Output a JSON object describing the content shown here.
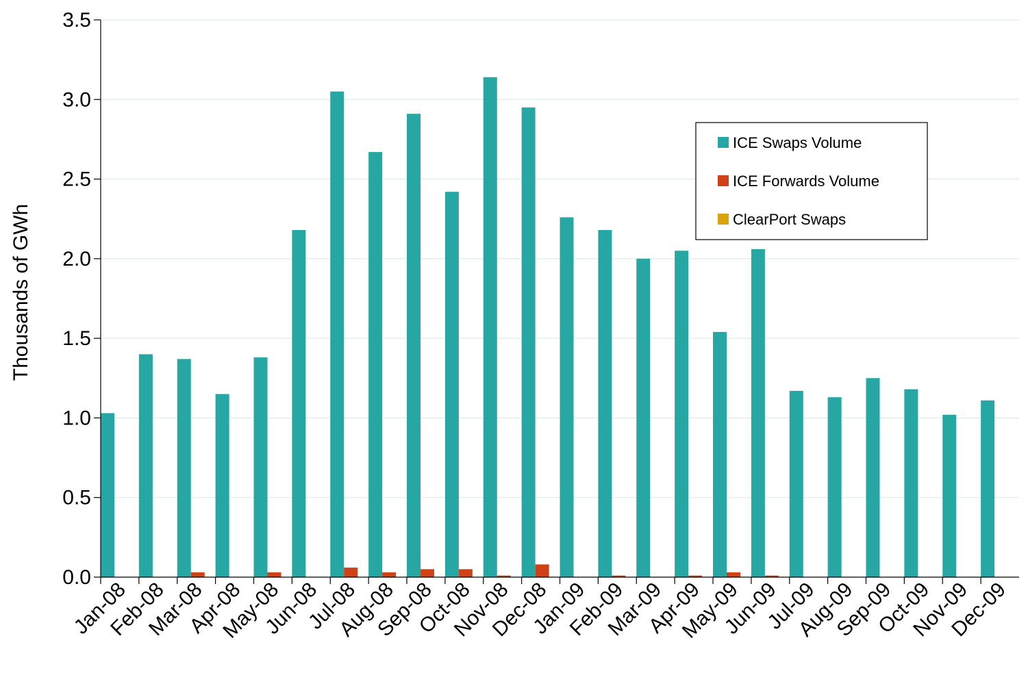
{
  "chart_data": {
    "type": "bar",
    "title": "",
    "xlabel": "",
    "ylabel": "Thousands of GWh",
    "ylim": [
      0,
      3.5
    ],
    "yticks": [
      "0.0",
      "0.5",
      "1.0",
      "1.5",
      "2.0",
      "2.5",
      "3.0",
      "3.5"
    ],
    "grid": true,
    "legend_position": "top-right",
    "categories": [
      "Jan-08",
      "Feb-08",
      "Mar-08",
      "Apr-08",
      "May-08",
      "Jun-08",
      "Jul-08",
      "Aug-08",
      "Sep-08",
      "Oct-08",
      "Nov-08",
      "Dec-08",
      "Jan-09",
      "Feb-09",
      "Mar-09",
      "Apr-09",
      "May-09",
      "Jun-09",
      "Jul-09",
      "Aug-09",
      "Sep-09",
      "Oct-09",
      "Nov-09",
      "Dec-09"
    ],
    "series": [
      {
        "name": "ICE Swaps Volume",
        "color": "#27a7a4",
        "values": [
          1.03,
          1.4,
          1.37,
          1.15,
          1.38,
          2.18,
          3.05,
          2.67,
          2.91,
          2.42,
          3.14,
          2.95,
          2.26,
          2.18,
          2.0,
          2.05,
          1.54,
          2.06,
          1.17,
          1.13,
          1.25,
          1.18,
          1.02,
          1.11
        ]
      },
      {
        "name": "ICE Forwards Volume",
        "color": "#cf4217",
        "values": [
          0,
          0,
          0.03,
          0,
          0.03,
          0,
          0.06,
          0.03,
          0.05,
          0.05,
          0.01,
          0.08,
          0,
          0.01,
          0,
          0.01,
          0.03,
          0.01,
          0,
          0,
          0,
          0,
          0,
          0
        ]
      },
      {
        "name": "ClearPort Swaps",
        "color": "#d9a30f",
        "values": [
          0,
          0,
          0,
          0,
          0,
          0,
          0,
          0,
          0,
          0,
          0,
          0,
          0,
          0,
          0,
          0,
          0,
          0,
          0,
          0,
          0,
          0,
          0,
          0
        ]
      }
    ]
  }
}
